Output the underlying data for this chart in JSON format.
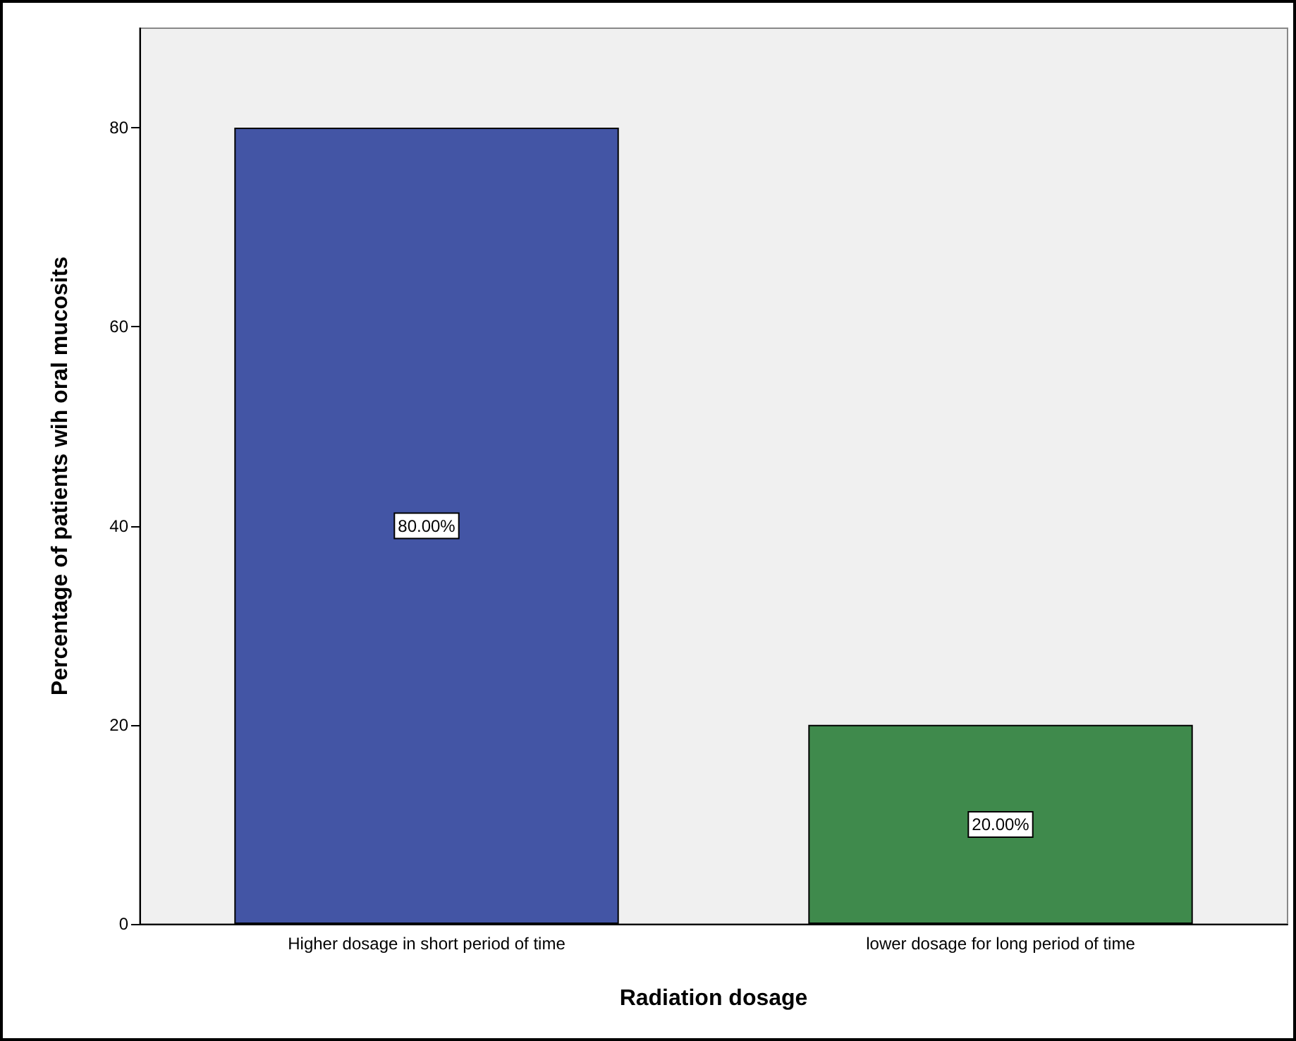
{
  "chart_data": {
    "type": "bar",
    "xlabel": "Radiation dosage",
    "ylabel": "Percentage of patients wih oral mucosits",
    "categories": [
      "Higher dosage in short period of time",
      "lower dosage for long period of time"
    ],
    "values": [
      80,
      20
    ],
    "colors": [
      "#4355a5",
      "#3f8a4c"
    ],
    "value_labels": [
      "80.00%",
      "20.00%"
    ],
    "ylim": [
      0,
      90
    ],
    "yticks": [
      0,
      20,
      40,
      60,
      80
    ],
    "grid": false
  }
}
